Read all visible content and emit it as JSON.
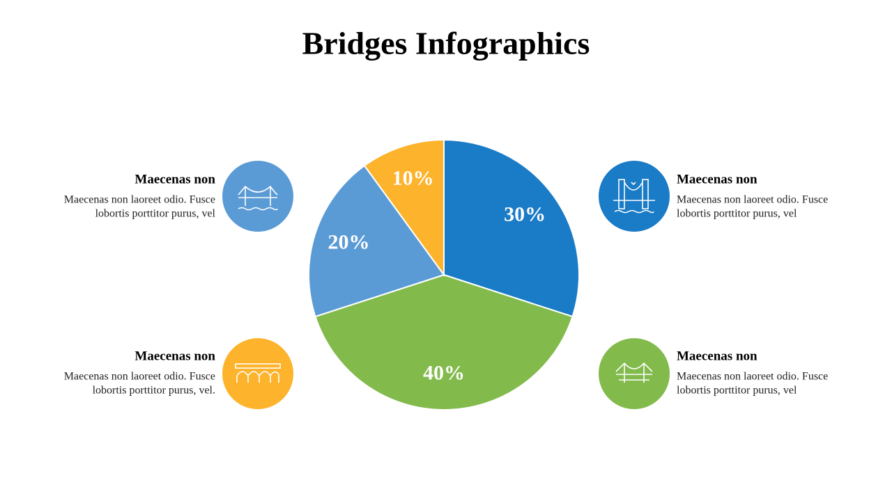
{
  "chart_data": {
    "type": "pie",
    "title": "Bridges Infographics",
    "values": [
      30,
      40,
      20,
      10
    ],
    "value_labels": [
      "30%",
      "40%",
      "20%",
      "10%"
    ],
    "colors": [
      "#1a7bc6",
      "#82ba4c",
      "#5b9bd5",
      "#fdb32b"
    ]
  },
  "items": [
    {
      "title": "Maecenas non",
      "lines": [
        "Maecenas non laoreet odio. Fusce",
        "lobortis porttitor purus, vel"
      ]
    },
    {
      "title": "Maecenas non",
      "lines": [
        "Maecenas non laoreet odio. Fusce",
        "lobortis porttitor purus, vel"
      ]
    },
    {
      "title": "Maecenas non",
      "lines": [
        "Maecenas non laoreet odio. Fusce",
        "lobortis porttitor purus, vel"
      ]
    },
    {
      "title": "Maecenas non",
      "lines": [
        "Maecenas non laoreet odio. Fusce",
        "lobortis porttitor purus, vel."
      ]
    }
  ]
}
